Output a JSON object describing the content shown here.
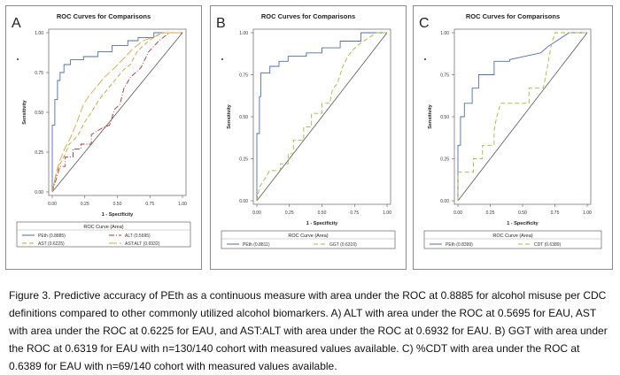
{
  "chart_data": [
    {
      "type": "line",
      "panel_letter": "A",
      "title": "ROC Curves for Comparisons",
      "xlabel": "1 - Specificity",
      "ylabel": "Sensitivity",
      "xlim": [
        0,
        1
      ],
      "ylim": [
        0,
        1
      ],
      "ticks": [
        "0.00",
        "0.25",
        "0.50",
        "0.75",
        "1.00"
      ],
      "legend_title": "ROC Curve (Area)",
      "legend_position": "bottom",
      "reference_line": true,
      "series": [
        {
          "name": "PEth (0.8885)",
          "color": "#4a6fb5",
          "dash": "",
          "points": [
            [
              0,
              0
            ],
            [
              0,
              0.42
            ],
            [
              0.02,
              0.42
            ],
            [
              0.02,
              0.58
            ],
            [
              0.04,
              0.58
            ],
            [
              0.04,
              0.7
            ],
            [
              0.06,
              0.7
            ],
            [
              0.06,
              0.75
            ],
            [
              0.09,
              0.75
            ],
            [
              0.09,
              0.8
            ],
            [
              0.14,
              0.8
            ],
            [
              0.14,
              0.83
            ],
            [
              0.24,
              0.83
            ],
            [
              0.24,
              0.85
            ],
            [
              0.35,
              0.85
            ],
            [
              0.35,
              0.88
            ],
            [
              0.46,
              0.88
            ],
            [
              0.46,
              0.92
            ],
            [
              0.58,
              0.92
            ],
            [
              0.58,
              0.95
            ],
            [
              0.66,
              0.95
            ],
            [
              0.66,
              0.97
            ],
            [
              0.78,
              0.97
            ],
            [
              0.78,
              1
            ],
            [
              1,
              1
            ]
          ]
        },
        {
          "name": "ALT (0.5695)",
          "color": "#a8323a",
          "dash": "6,2,1,2",
          "points": [
            [
              0,
              0
            ],
            [
              0.03,
              0.08
            ],
            [
              0.06,
              0.16
            ],
            [
              0.1,
              0.16
            ],
            [
              0.1,
              0.22
            ],
            [
              0.16,
              0.22
            ],
            [
              0.16,
              0.27
            ],
            [
              0.22,
              0.27
            ],
            [
              0.22,
              0.3
            ],
            [
              0.3,
              0.3
            ],
            [
              0.3,
              0.36
            ],
            [
              0.38,
              0.4
            ],
            [
              0.44,
              0.42
            ],
            [
              0.48,
              0.52
            ],
            [
              0.52,
              0.55
            ],
            [
              0.55,
              0.65
            ],
            [
              0.6,
              0.72
            ],
            [
              0.68,
              0.78
            ],
            [
              0.74,
              0.88
            ],
            [
              0.82,
              0.95
            ],
            [
              0.9,
              1
            ],
            [
              1,
              1
            ]
          ]
        },
        {
          "name": "AST (0.6225)",
          "color": "#c9a227",
          "dash": "5,3",
          "points": [
            [
              0,
              0
            ],
            [
              0.02,
              0.08
            ],
            [
              0.05,
              0.16
            ],
            [
              0.09,
              0.22
            ],
            [
              0.13,
              0.3
            ],
            [
              0.17,
              0.33
            ],
            [
              0.2,
              0.36
            ],
            [
              0.25,
              0.44
            ],
            [
              0.3,
              0.5
            ],
            [
              0.36,
              0.58
            ],
            [
              0.42,
              0.64
            ],
            [
              0.46,
              0.68
            ],
            [
              0.5,
              0.72
            ],
            [
              0.55,
              0.77
            ],
            [
              0.6,
              0.8
            ],
            [
              0.65,
              0.88
            ],
            [
              0.7,
              0.92
            ],
            [
              0.76,
              0.96
            ],
            [
              0.84,
              1
            ],
            [
              1,
              1
            ]
          ]
        },
        {
          "name": "AST:ALT (0.6932)",
          "color": "#d9a441",
          "dash": "9,3",
          "points": [
            [
              0,
              0
            ],
            [
              0.03,
              0.12
            ],
            [
              0.06,
              0.2
            ],
            [
              0.1,
              0.28
            ],
            [
              0.14,
              0.34
            ],
            [
              0.17,
              0.4
            ],
            [
              0.2,
              0.46
            ],
            [
              0.24,
              0.55
            ],
            [
              0.28,
              0.6
            ],
            [
              0.33,
              0.65
            ],
            [
              0.4,
              0.72
            ],
            [
              0.48,
              0.78
            ],
            [
              0.55,
              0.84
            ],
            [
              0.62,
              0.9
            ],
            [
              0.7,
              0.95
            ],
            [
              0.8,
              0.98
            ],
            [
              0.86,
              1
            ],
            [
              1,
              1
            ]
          ]
        }
      ]
    },
    {
      "type": "line",
      "panel_letter": "B",
      "title": "ROC Curves for Comparisons",
      "xlabel": "1 - Specificity",
      "ylabel": "Sensitivity",
      "xlim": [
        0,
        1
      ],
      "ylim": [
        0,
        1
      ],
      "ticks": [
        "0.00",
        "0.25",
        "0.50",
        "0.75",
        "1.00"
      ],
      "legend_title": "ROC Curve (Area)",
      "legend_position": "bottom",
      "reference_line": true,
      "series": [
        {
          "name": "PEth (0.8811)",
          "color": "#4a6fb5",
          "dash": "",
          "points": [
            [
              0,
              0
            ],
            [
              0,
              0.4
            ],
            [
              0.02,
              0.4
            ],
            [
              0.02,
              0.62
            ],
            [
              0.03,
              0.62
            ],
            [
              0.03,
              0.76
            ],
            [
              0.1,
              0.76
            ],
            [
              0.1,
              0.8
            ],
            [
              0.17,
              0.8
            ],
            [
              0.17,
              0.83
            ],
            [
              0.24,
              0.83
            ],
            [
              0.24,
              0.86
            ],
            [
              0.38,
              0.86
            ],
            [
              0.38,
              0.88
            ],
            [
              0.5,
              0.88
            ],
            [
              0.5,
              0.91
            ],
            [
              0.64,
              0.91
            ],
            [
              0.64,
              0.95
            ],
            [
              0.8,
              0.95
            ],
            [
              0.8,
              1
            ],
            [
              1,
              1
            ]
          ]
        },
        {
          "name": "GGT (0.6319)",
          "color": "#a5b83a",
          "dash": "5,3",
          "points": [
            [
              0,
              0
            ],
            [
              0.02,
              0.08
            ],
            [
              0.06,
              0.13
            ],
            [
              0.1,
              0.18
            ],
            [
              0.18,
              0.18
            ],
            [
              0.18,
              0.22
            ],
            [
              0.24,
              0.22
            ],
            [
              0.24,
              0.28
            ],
            [
              0.28,
              0.28
            ],
            [
              0.28,
              0.36
            ],
            [
              0.36,
              0.36
            ],
            [
              0.36,
              0.44
            ],
            [
              0.42,
              0.44
            ],
            [
              0.42,
              0.52
            ],
            [
              0.5,
              0.52
            ],
            [
              0.5,
              0.58
            ],
            [
              0.56,
              0.58
            ],
            [
              0.58,
              0.66
            ],
            [
              0.62,
              0.7
            ],
            [
              0.66,
              0.8
            ],
            [
              0.7,
              0.86
            ],
            [
              0.74,
              0.9
            ],
            [
              0.8,
              0.94
            ],
            [
              0.86,
              0.97
            ],
            [
              0.92,
              1
            ],
            [
              1,
              1
            ]
          ]
        }
      ]
    },
    {
      "type": "line",
      "panel_letter": "C",
      "title": "ROC Curves for Comparisons",
      "xlabel": "1 - Specificity",
      "ylabel": "Sensitivity",
      "xlim": [
        0,
        1
      ],
      "ylim": [
        0,
        1
      ],
      "ticks": [
        "0.00",
        "0.25",
        "0.50",
        "0.75",
        "1.00"
      ],
      "legend_title": "ROC Curve (Area)",
      "legend_position": "bottom",
      "reference_line": true,
      "series": [
        {
          "name": "PEth (0.8399)",
          "color": "#4a6fb5",
          "dash": "",
          "points": [
            [
              0,
              0
            ],
            [
              0,
              0.33
            ],
            [
              0.02,
              0.33
            ],
            [
              0.02,
              0.5
            ],
            [
              0.05,
              0.5
            ],
            [
              0.05,
              0.58
            ],
            [
              0.11,
              0.58
            ],
            [
              0.11,
              0.67
            ],
            [
              0.16,
              0.67
            ],
            [
              0.16,
              0.75
            ],
            [
              0.28,
              0.75
            ],
            [
              0.28,
              0.83
            ],
            [
              0.4,
              0.83
            ],
            [
              0.4,
              0.84
            ],
            [
              0.52,
              0.86
            ],
            [
              0.64,
              0.88
            ],
            [
              0.7,
              0.92
            ],
            [
              0.78,
              0.96
            ],
            [
              0.86,
              1
            ],
            [
              1,
              1
            ]
          ]
        },
        {
          "name": "CDT (0.6389)",
          "color": "#a5b83a",
          "dash": "5,3",
          "points": [
            [
              0,
              0
            ],
            [
              0,
              0.17
            ],
            [
              0.12,
              0.17
            ],
            [
              0.12,
              0.25
            ],
            [
              0.19,
              0.25
            ],
            [
              0.19,
              0.33
            ],
            [
              0.28,
              0.33
            ],
            [
              0.28,
              0.42
            ],
            [
              0.3,
              0.5
            ],
            [
              0.33,
              0.58
            ],
            [
              0.55,
              0.58
            ],
            [
              0.55,
              0.67
            ],
            [
              0.66,
              0.67
            ],
            [
              0.68,
              0.75
            ],
            [
              0.7,
              0.83
            ],
            [
              0.72,
              0.92
            ],
            [
              0.75,
              1
            ],
            [
              1,
              1
            ]
          ]
        }
      ]
    }
  ],
  "caption": "Figure 3. Predictive accuracy of PEth as a continuous measure with area under the ROC at 0.8885 for alcohol misuse per CDC definitions compared to other commonly utilized alcohol biomarkers. A) ALT with area under the ROC at 0.5695 for EAU, AST with area under the ROC at 0.6225 for EAU, and AST:ALT with area under the ROC at 0.6932 for EAU. B) GGT with area under the ROC at 0.6319 for EAU with n=130/140 cohort with measured values available. C) %CDT with area under the ROC at 0.6389 for EAU with n=69/140 cohort with measured values available."
}
